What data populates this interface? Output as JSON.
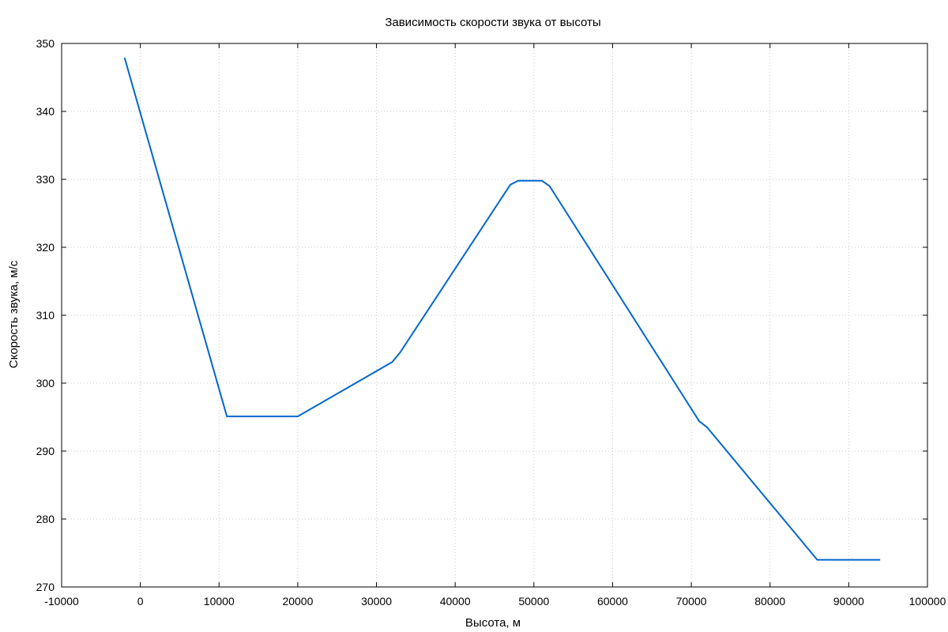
{
  "chart_data": {
    "type": "line",
    "title": "Зависимость скорости звука от высоты",
    "xlabel": "Высота, м",
    "ylabel": "Скорость звука, м/с",
    "xlim": [
      -10000,
      100000
    ],
    "ylim": [
      270,
      350
    ],
    "xticks": [
      -10000,
      0,
      10000,
      20000,
      30000,
      40000,
      50000,
      60000,
      70000,
      80000,
      90000,
      100000
    ],
    "yticks": [
      270,
      280,
      290,
      300,
      310,
      320,
      330,
      340,
      350
    ],
    "grid": true,
    "line_color": "#0066cc",
    "series": [
      {
        "x": [
          -2000,
          11000,
          12000,
          20000,
          32000,
          33000,
          47000,
          48000,
          51000,
          52000,
          71000,
          72000,
          85000,
          86000,
          94000
        ],
        "y": [
          347.9,
          295.1,
          295.1,
          295.1,
          303.1,
          304.5,
          329.2,
          329.8,
          329.8,
          329.0,
          294.4,
          293.5,
          275.4,
          274.0,
          274.0
        ]
      }
    ]
  }
}
